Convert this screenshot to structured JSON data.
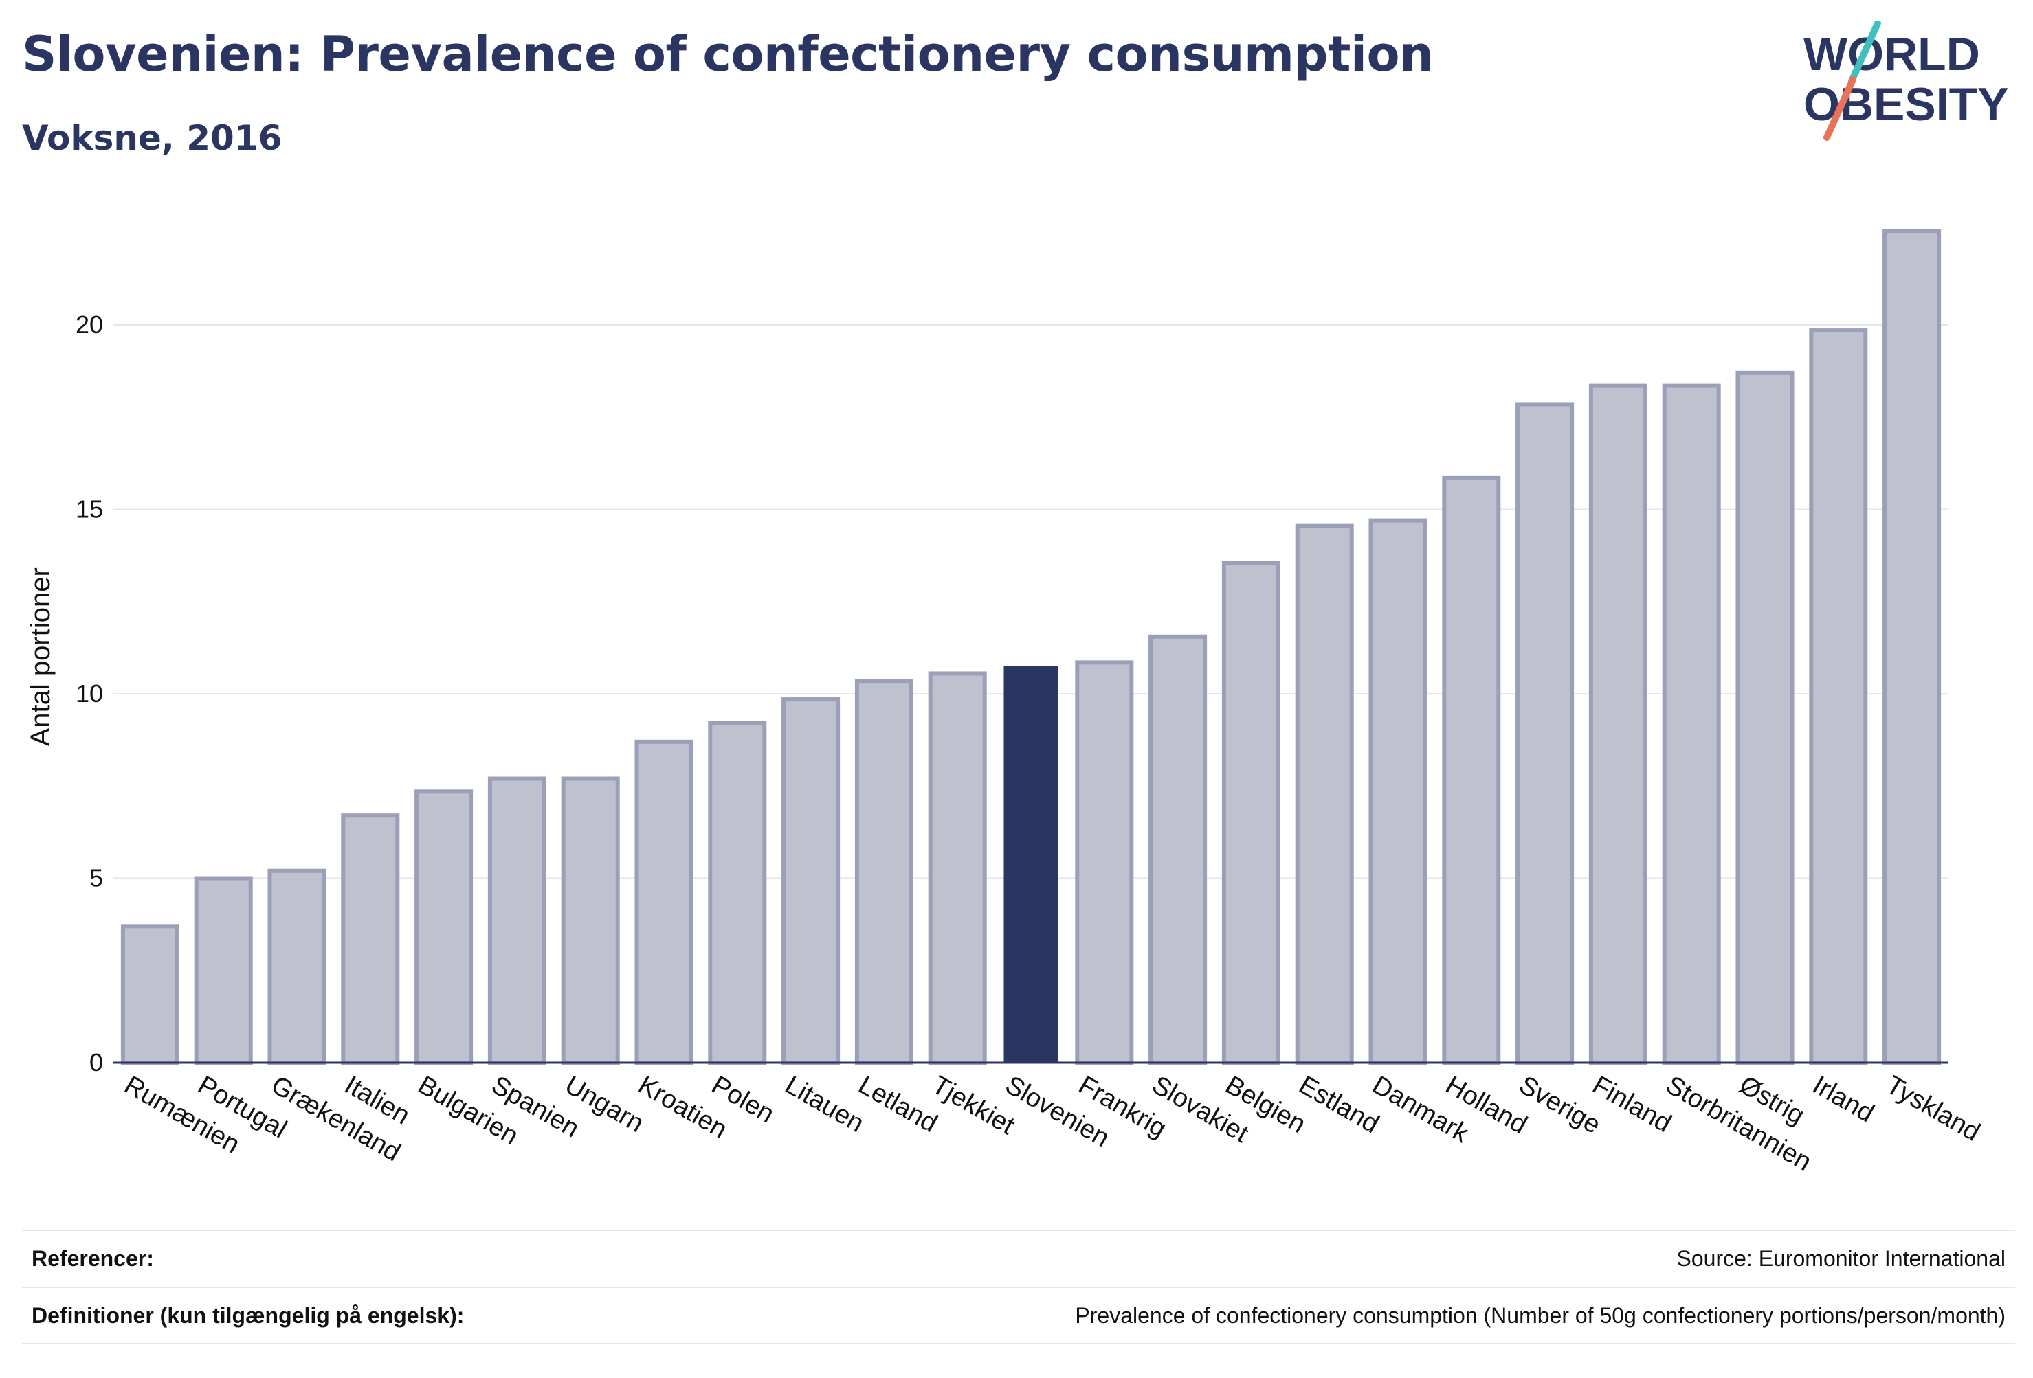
{
  "header": {
    "title": "Slovenien: Prevalence of confectionery consumption",
    "subtitle": "Voksne, 2016"
  },
  "logo": {
    "line1": "WORLD",
    "line2": "OBESITY",
    "slash_top_color": "#3fbfc0",
    "slash_bottom_color": "#e8735a"
  },
  "footer": {
    "references_label": "Referencer:",
    "references_value": "Source: Euromonitor International",
    "definitions_label": "Definitioner (kun tilgængelig på engelsk):",
    "definitions_value": "Prevalence of confectionery consumption (Number of 50g confectionery portions/person/month)"
  },
  "chart_data": {
    "type": "bar",
    "title": "Slovenien: Prevalence of confectionery consumption",
    "subtitle": "Voksne, 2016",
    "xlabel": "",
    "ylabel": "Antal portioner",
    "ylim": [
      0,
      23
    ],
    "yticks": [
      0,
      5,
      10,
      15,
      20
    ],
    "grid": true,
    "highlight": "Slovenien",
    "colors": {
      "bar_fill": "#bfc1cf",
      "bar_stroke": "#9b9fb8",
      "highlight_fill": "#2b3561",
      "grid": "#e6e6ea",
      "axis": "#2b3561"
    },
    "categories": [
      "Rumænien",
      "Portugal",
      "Grækenland",
      "Italien",
      "Bulgarien",
      "Spanien",
      "Ungarn",
      "Kroatien",
      "Polen",
      "Litauen",
      "Letland",
      "Tjekkiet",
      "Slovenien",
      "Frankrig",
      "Slovakiet",
      "Belgien",
      "Estland",
      "Danmark",
      "Holland",
      "Sverige",
      "Finland",
      "Storbritannien",
      "Østrig",
      "Irland",
      "Tyskland"
    ],
    "values": [
      3.7,
      5.0,
      5.2,
      6.7,
      7.35,
      7.7,
      7.7,
      8.7,
      9.2,
      9.85,
      10.35,
      10.55,
      10.75,
      10.85,
      11.55,
      13.55,
      14.55,
      14.7,
      15.85,
      17.85,
      18.35,
      18.35,
      18.7,
      19.85,
      22.55
    ]
  }
}
